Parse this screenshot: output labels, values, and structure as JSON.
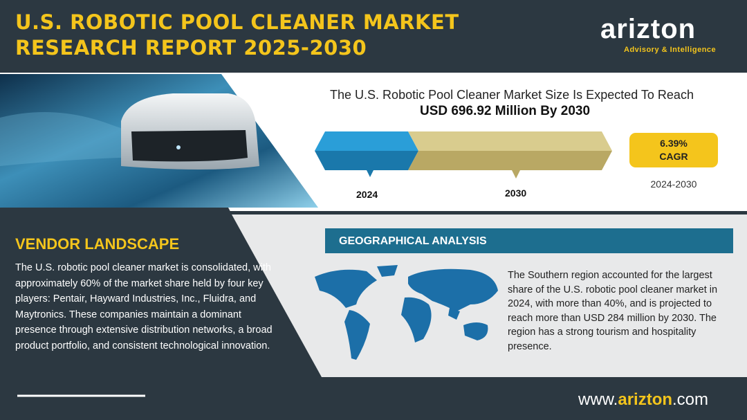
{
  "header": {
    "title_lines": [
      "U.S. ROBOTIC POOL CLEANER MARKET",
      "RESEARCH REPORT 2025-2030"
    ],
    "logo": "arizton",
    "logo_tagline": "Advisory & Intelligence"
  },
  "market": {
    "headline": "The U.S. Robotic Pool Cleaner Market Size Is Expected To Reach",
    "highlight": "USD 696.92 Million By 2030",
    "start_year": "2024",
    "end_year": "2030",
    "cagr_value": "6.39%",
    "cagr_label": "CAGR",
    "cagr_period": "2024-2030"
  },
  "vendor": {
    "heading": "VENDOR LANDSCAPE",
    "text": "The U.S. robotic pool cleaner market is consolidated, with approximately 60% of the market share held by four key players: Pentair, Hayward Industries, Inc., Fluidra, and Maytronics. These companies maintain a dominant presence through extensive distribution networks, a broad product portfolio, and consistent technological innovation."
  },
  "geography": {
    "heading": "GEOGRAPHICAL ANALYSIS",
    "text": "The Southern region accounted for the largest share of the U.S. robotic pool cleaner market in 2024, with more than 40%, and is projected to reach more than USD 284 million by 2030. The region has a strong tourism and hospitality presence."
  },
  "footer": {
    "prefix": "www.",
    "brand": "arizton",
    "suffix": ".com"
  }
}
